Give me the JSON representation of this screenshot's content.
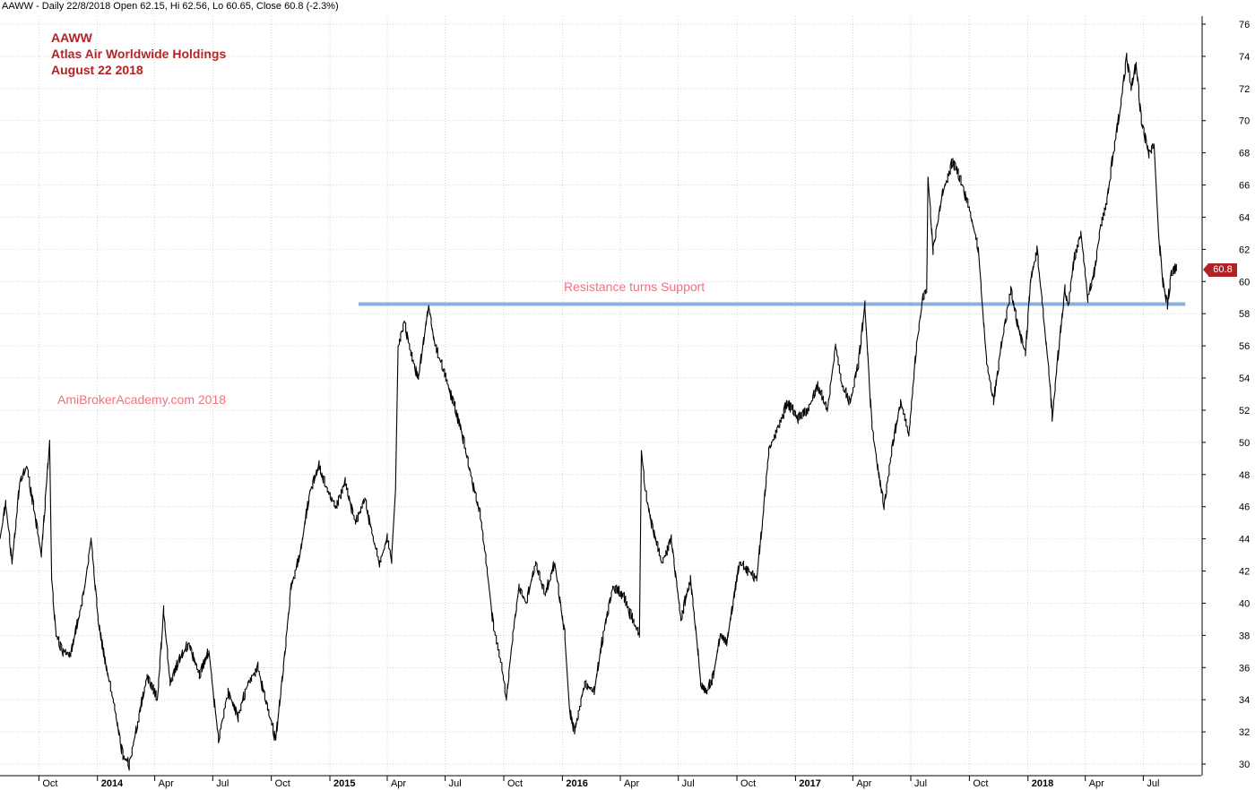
{
  "header": "AAWW - Daily 22/8/2018 Open 62.15, Hi 62.56, Lo 60.65, Close 60.8 (-2.3%)",
  "notes": [
    "AAWW",
    "Atlas Air Worldwide Holdings",
    "August 22 2018"
  ],
  "watermark": "AmiBrokerAcademy.com  2018",
  "annotation": "Resistance turns Support",
  "last_price_label": "60.8",
  "colors": {
    "price": "#000000",
    "support_line": "#8ab0e0",
    "note_text": "#b22222",
    "annotation_text": "#f07080",
    "badge": "#b22222",
    "grid": "#bbbbbb"
  },
  "chart_data": {
    "type": "line",
    "ticker": "AAWW",
    "y_ticks": [
      30,
      32,
      34,
      36,
      38,
      40,
      42,
      44,
      46,
      48,
      50,
      52,
      54,
      56,
      58,
      60,
      62,
      64,
      66,
      68,
      70,
      72,
      74,
      76
    ],
    "ylim": [
      29.5,
      76.5
    ],
    "x_ticks": [
      {
        "date": "2013-10-01",
        "label": "Oct",
        "bold": false
      },
      {
        "date": "2014-01-01",
        "label": "2014",
        "bold": true
      },
      {
        "date": "2014-04-01",
        "label": "Apr",
        "bold": false
      },
      {
        "date": "2014-07-01",
        "label": "Jul",
        "bold": false
      },
      {
        "date": "2014-10-01",
        "label": "Oct",
        "bold": false
      },
      {
        "date": "2015-01-01",
        "label": "2015",
        "bold": true
      },
      {
        "date": "2015-04-01",
        "label": "Apr",
        "bold": false
      },
      {
        "date": "2015-07-01",
        "label": "Jul",
        "bold": false
      },
      {
        "date": "2015-10-01",
        "label": "Oct",
        "bold": false
      },
      {
        "date": "2016-01-01",
        "label": "2016",
        "bold": true
      },
      {
        "date": "2016-04-01",
        "label": "Apr",
        "bold": false
      },
      {
        "date": "2016-07-01",
        "label": "Jul",
        "bold": false
      },
      {
        "date": "2016-10-01",
        "label": "Oct",
        "bold": false
      },
      {
        "date": "2017-01-01",
        "label": "2017",
        "bold": true
      },
      {
        "date": "2017-04-01",
        "label": "Apr",
        "bold": false
      },
      {
        "date": "2017-07-01",
        "label": "Jul",
        "bold": false
      },
      {
        "date": "2017-10-01",
        "label": "Oct",
        "bold": false
      },
      {
        "date": "2018-01-01",
        "label": "2018",
        "bold": true
      },
      {
        "date": "2018-04-01",
        "label": "Apr",
        "bold": false
      },
      {
        "date": "2018-07-01",
        "label": "Jul",
        "bold": false
      }
    ],
    "xlim": [
      "2013-08-01",
      "2018-09-30"
    ],
    "series": [
      {
        "points": [
          [
            "2013-08-01",
            44.0
          ],
          [
            "2013-08-10",
            46.2
          ],
          [
            "2013-08-20",
            42.5
          ],
          [
            "2013-09-01",
            47.5
          ],
          [
            "2013-09-12",
            48.5
          ],
          [
            "2013-09-25",
            45.5
          ],
          [
            "2013-10-05",
            43.0
          ],
          [
            "2013-10-15",
            48.5
          ],
          [
            "2013-10-18",
            50.0
          ],
          [
            "2013-10-21",
            41.5
          ],
          [
            "2013-10-28",
            38.0
          ],
          [
            "2013-11-08",
            37.0
          ],
          [
            "2013-11-20",
            36.8
          ],
          [
            "2013-12-02",
            39.0
          ],
          [
            "2013-12-12",
            41.0
          ],
          [
            "2013-12-22",
            44.0
          ],
          [
            "2014-01-02",
            39.0
          ],
          [
            "2014-01-15",
            36.0
          ],
          [
            "2014-01-28",
            33.5
          ],
          [
            "2014-02-10",
            30.5
          ],
          [
            "2014-02-20",
            30.0
          ],
          [
            "2014-03-05",
            32.5
          ],
          [
            "2014-03-20",
            35.5
          ],
          [
            "2014-04-05",
            34.0
          ],
          [
            "2014-04-15",
            39.5
          ],
          [
            "2014-04-25",
            35.0
          ],
          [
            "2014-05-10",
            36.5
          ],
          [
            "2014-05-25",
            37.5
          ],
          [
            "2014-06-10",
            35.5
          ],
          [
            "2014-06-25",
            37.0
          ],
          [
            "2014-07-10",
            31.5
          ],
          [
            "2014-07-25",
            34.5
          ],
          [
            "2014-08-10",
            33.0
          ],
          [
            "2014-08-25",
            35.0
          ],
          [
            "2014-09-10",
            36.0
          ],
          [
            "2014-09-25",
            33.5
          ],
          [
            "2014-10-08",
            31.5
          ],
          [
            "2014-10-20",
            36.0
          ],
          [
            "2014-11-01",
            41.0
          ],
          [
            "2014-11-15",
            43.0
          ],
          [
            "2014-12-01",
            47.0
          ],
          [
            "2014-12-15",
            48.5
          ],
          [
            "2014-12-28",
            47.0
          ],
          [
            "2015-01-10",
            46.0
          ],
          [
            "2015-01-25",
            47.5
          ],
          [
            "2015-02-10",
            45.0
          ],
          [
            "2015-02-25",
            46.5
          ],
          [
            "2015-03-10",
            44.0
          ],
          [
            "2015-03-20",
            42.5
          ],
          [
            "2015-04-01",
            44.0
          ],
          [
            "2015-04-08",
            42.8
          ],
          [
            "2015-04-14",
            47.0
          ],
          [
            "2015-04-18",
            56.0
          ],
          [
            "2015-04-28",
            57.5
          ],
          [
            "2015-05-08",
            55.5
          ],
          [
            "2015-05-20",
            54.0
          ],
          [
            "2015-06-05",
            58.5
          ],
          [
            "2015-06-15",
            56.0
          ],
          [
            "2015-06-28",
            54.5
          ],
          [
            "2015-07-10",
            53.0
          ],
          [
            "2015-07-25",
            51.0
          ],
          [
            "2015-08-10",
            48.0
          ],
          [
            "2015-08-25",
            45.5
          ],
          [
            "2015-09-05",
            42.0
          ],
          [
            "2015-09-15",
            38.5
          ],
          [
            "2015-09-28",
            36.0
          ],
          [
            "2015-10-05",
            34.0
          ],
          [
            "2015-10-15",
            38.0
          ],
          [
            "2015-10-25",
            41.0
          ],
          [
            "2015-11-05",
            40.0
          ],
          [
            "2015-11-20",
            42.5
          ],
          [
            "2015-12-05",
            40.5
          ],
          [
            "2015-12-20",
            42.5
          ],
          [
            "2016-01-05",
            38.0
          ],
          [
            "2016-01-12",
            33.5
          ],
          [
            "2016-01-20",
            32.0
          ],
          [
            "2016-02-05",
            35.0
          ],
          [
            "2016-02-20",
            34.5
          ],
          [
            "2016-03-05",
            38.0
          ],
          [
            "2016-03-20",
            41.0
          ],
          [
            "2016-04-05",
            40.5
          ],
          [
            "2016-04-20",
            39.0
          ],
          [
            "2016-05-01",
            38.0
          ],
          [
            "2016-05-04",
            49.5
          ],
          [
            "2016-05-10",
            47.0
          ],
          [
            "2016-05-20",
            45.0
          ],
          [
            "2016-06-05",
            42.5
          ],
          [
            "2016-06-20",
            44.0
          ],
          [
            "2016-07-05",
            39.0
          ],
          [
            "2016-07-20",
            41.5
          ],
          [
            "2016-08-01",
            37.0
          ],
          [
            "2016-08-05",
            35.0
          ],
          [
            "2016-08-15",
            34.5
          ],
          [
            "2016-08-25",
            35.5
          ],
          [
            "2016-09-05",
            38.0
          ],
          [
            "2016-09-15",
            37.5
          ],
          [
            "2016-09-25",
            40.0
          ],
          [
            "2016-10-05",
            42.5
          ],
          [
            "2016-10-20",
            42.0
          ],
          [
            "2016-11-01",
            41.5
          ],
          [
            "2016-11-10",
            45.0
          ],
          [
            "2016-11-20",
            49.5
          ],
          [
            "2016-12-05",
            51.0
          ],
          [
            "2016-12-20",
            52.5
          ],
          [
            "2017-01-05",
            51.5
          ],
          [
            "2017-01-20",
            52.0
          ],
          [
            "2017-02-05",
            53.5
          ],
          [
            "2017-02-20",
            52.0
          ],
          [
            "2017-03-05",
            56.0
          ],
          [
            "2017-03-15",
            53.5
          ],
          [
            "2017-03-28",
            52.5
          ],
          [
            "2017-04-10",
            55.0
          ],
          [
            "2017-04-20",
            58.5
          ],
          [
            "2017-05-01",
            51.0
          ],
          [
            "2017-05-10",
            48.5
          ],
          [
            "2017-05-20",
            46.0
          ],
          [
            "2017-06-01",
            49.5
          ],
          [
            "2017-06-15",
            52.5
          ],
          [
            "2017-06-28",
            50.5
          ],
          [
            "2017-07-10",
            56.0
          ],
          [
            "2017-07-20",
            59.0
          ],
          [
            "2017-07-26",
            59.5
          ],
          [
            "2017-07-28",
            66.5
          ],
          [
            "2017-08-05",
            62.0
          ],
          [
            "2017-08-20",
            65.5
          ],
          [
            "2017-09-05",
            67.5
          ],
          [
            "2017-09-20",
            66.0
          ],
          [
            "2017-10-01",
            64.5
          ],
          [
            "2017-10-15",
            62.0
          ],
          [
            "2017-10-28",
            55.0
          ],
          [
            "2017-11-08",
            52.5
          ],
          [
            "2017-11-20",
            56.0
          ],
          [
            "2017-12-05",
            59.5
          ],
          [
            "2017-12-15",
            57.5
          ],
          [
            "2017-12-28",
            55.5
          ],
          [
            "2018-01-05",
            60.0
          ],
          [
            "2018-01-15",
            62.0
          ],
          [
            "2018-01-25",
            58.0
          ],
          [
            "2018-02-05",
            53.5
          ],
          [
            "2018-02-08",
            51.5
          ],
          [
            "2018-02-15",
            54.5
          ],
          [
            "2018-02-28",
            59.5
          ],
          [
            "2018-03-05",
            58.5
          ],
          [
            "2018-03-15",
            61.5
          ],
          [
            "2018-03-25",
            63.0
          ],
          [
            "2018-04-05",
            59.0
          ],
          [
            "2018-04-15",
            60.5
          ],
          [
            "2018-04-25",
            63.5
          ],
          [
            "2018-05-05",
            65.0
          ],
          [
            "2018-05-15",
            68.0
          ],
          [
            "2018-05-25",
            70.5
          ],
          [
            "2018-06-05",
            74.0
          ],
          [
            "2018-06-12",
            72.0
          ],
          [
            "2018-06-20",
            73.5
          ],
          [
            "2018-06-28",
            70.0
          ],
          [
            "2018-07-10",
            68.0
          ],
          [
            "2018-07-18",
            68.5
          ],
          [
            "2018-07-25",
            63.0
          ],
          [
            "2018-08-01",
            60.0
          ],
          [
            "2018-08-08",
            58.5
          ],
          [
            "2018-08-14",
            60.5
          ],
          [
            "2018-08-22",
            60.8
          ]
        ]
      }
    ],
    "support_level": 58.6,
    "support_range": [
      "2015-02-15",
      "2018-09-05"
    ]
  }
}
